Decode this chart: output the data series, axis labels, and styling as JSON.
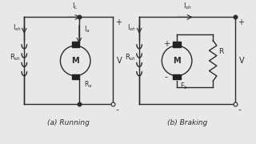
{
  "bg_color": "#e8e8e8",
  "line_color": "#2a2a2a",
  "title_a": "(a) Running",
  "title_b": "(b) Braking",
  "label_IL": "I$_L$",
  "label_Ish_a": "I$_{sh}$",
  "label_Ia": "I$_a$",
  "label_Rsh_a": "R$_{sh}$",
  "label_Ra": "R$_a$",
  "label_V_a": "V",
  "label_Ish_b": "I$_{sh}$",
  "label_Rsh_b": "R$_{sh}$",
  "label_R": "R",
  "label_Eb": "E$_b$",
  "label_V_b": "V",
  "plus": "+",
  "minus": "-"
}
